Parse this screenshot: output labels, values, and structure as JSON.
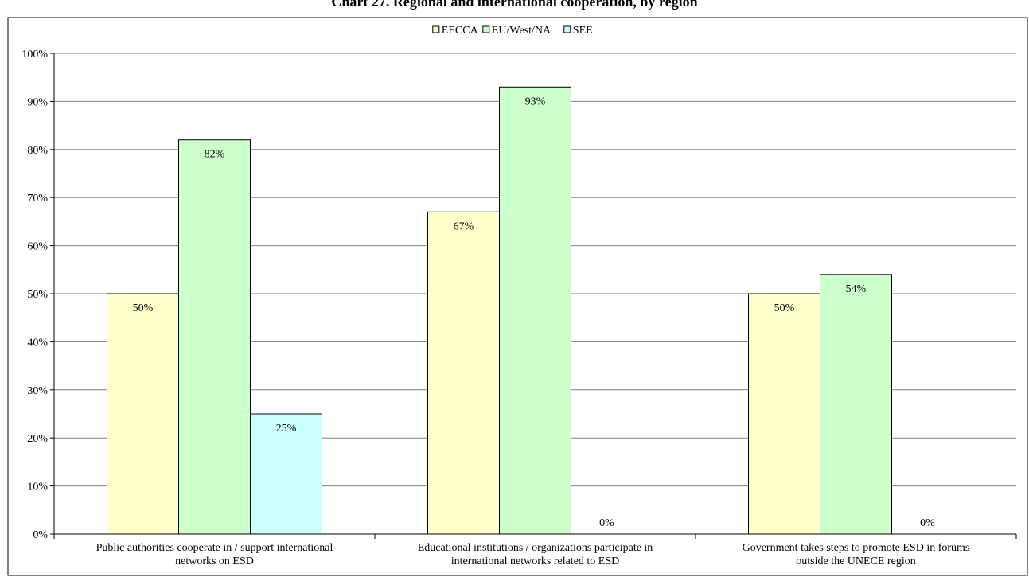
{
  "chart_data": {
    "type": "bar",
    "title": "Chart 27. Regional and international cooperation, by region",
    "categories": [
      [
        "Public authorities cooperate in / support international",
        "networks on ESD"
      ],
      [
        "Educational institutions / organizations participate in",
        "international networks related to ESD"
      ],
      [
        "Government takes steps to promote ESD in forums",
        "outside the UNECE region"
      ]
    ],
    "series": [
      {
        "name": "EECCA",
        "color": "#FFFFCC",
        "values": [
          50,
          67,
          50
        ],
        "labels": [
          "50%",
          "67%",
          "50%"
        ]
      },
      {
        "name": "EU/West/NA",
        "color": "#CCFFCC",
        "values": [
          82,
          93,
          54
        ],
        "labels": [
          "82%",
          "93%",
          "54%"
        ]
      },
      {
        "name": "SEE",
        "color": "#CCFFFF",
        "values": [
          25,
          0,
          0
        ],
        "labels": [
          "25%",
          "0%",
          "0%"
        ]
      }
    ],
    "ylim": [
      0,
      100
    ],
    "yticks": [
      "0%",
      "10%",
      "20%",
      "30%",
      "40%",
      "50%",
      "60%",
      "70%",
      "80%",
      "90%",
      "100%"
    ],
    "grid": true,
    "legend_position": "top-center"
  }
}
